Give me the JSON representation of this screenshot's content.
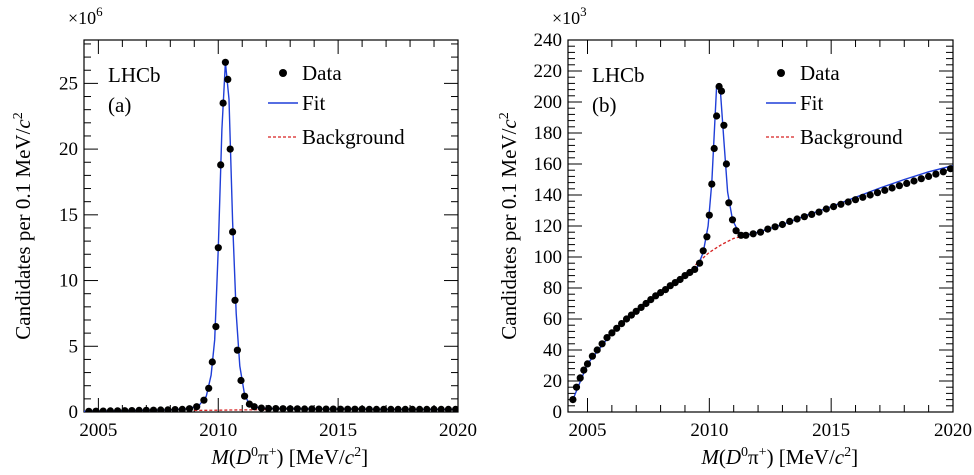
{
  "chart_data": [
    {
      "type": "scatter",
      "panel": "(a)",
      "experiment": "LHCb",
      "xlabel": "M(D0π+) [MeV/c2]",
      "ylabel": "Candidates per 0.1 MeV/c2",
      "y_multiplier": "×10^6",
      "xlim": [
        2004.4,
        2020
      ],
      "ylim": [
        0,
        28.3
      ],
      "x_ticks": [
        2005,
        2010,
        2015,
        2020
      ],
      "y_ticks": [
        0,
        5,
        10,
        15,
        20,
        25
      ],
      "grid": false,
      "legend_position": "top-right",
      "legend": [
        "Data",
        "Fit",
        "Background"
      ],
      "series": [
        {
          "name": "Data",
          "style": "markers",
          "color": "#000000",
          "x": [
            2004.6,
            2004.9,
            2005.2,
            2005.5,
            2005.8,
            2006.1,
            2006.4,
            2006.7,
            2007.0,
            2007.3,
            2007.6,
            2007.9,
            2008.2,
            2008.5,
            2008.8,
            2009.1,
            2009.4,
            2009.6,
            2009.75,
            2009.9,
            2010.0,
            2010.1,
            2010.2,
            2010.3,
            2010.4,
            2010.5,
            2010.6,
            2010.7,
            2010.8,
            2010.95,
            2011.1,
            2011.3,
            2011.5,
            2011.8,
            2012.1,
            2012.4,
            2012.7,
            2013.0,
            2013.3,
            2013.6,
            2013.9,
            2014.2,
            2014.5,
            2014.8,
            2015.1,
            2015.4,
            2015.7,
            2016.0,
            2016.3,
            2016.6,
            2016.9,
            2017.2,
            2017.5,
            2017.8,
            2018.1,
            2018.4,
            2018.7,
            2019.0,
            2019.3,
            2019.6,
            2019.9
          ],
          "y": [
            0.05,
            0.06,
            0.07,
            0.08,
            0.09,
            0.1,
            0.11,
            0.12,
            0.13,
            0.14,
            0.15,
            0.16,
            0.18,
            0.2,
            0.25,
            0.4,
            0.9,
            1.8,
            3.8,
            6.5,
            12.5,
            18.8,
            23.5,
            26.6,
            25.3,
            20.0,
            13.7,
            8.5,
            4.7,
            2.4,
            1.2,
            0.6,
            0.4,
            0.3,
            0.27,
            0.26,
            0.25,
            0.24,
            0.24,
            0.23,
            0.23,
            0.22,
            0.22,
            0.22,
            0.21,
            0.21,
            0.21,
            0.21,
            0.2,
            0.2,
            0.2,
            0.2,
            0.2,
            0.2,
            0.2,
            0.2,
            0.2,
            0.2,
            0.2,
            0.2,
            0.2
          ]
        },
        {
          "name": "Fit",
          "style": "line",
          "color": "#1f3ed8",
          "x": [
            2004.4,
            2005,
            2006,
            2007,
            2008,
            2008.8,
            2009.2,
            2009.5,
            2009.7,
            2009.85,
            2010.0,
            2010.15,
            2010.3,
            2010.45,
            2010.6,
            2010.75,
            2010.9,
            2011.1,
            2011.3,
            2011.6,
            2012.0,
            2013,
            2014,
            2015,
            2016,
            2017,
            2018,
            2019,
            2020
          ],
          "y": [
            0.05,
            0.06,
            0.1,
            0.13,
            0.17,
            0.25,
            0.5,
            1.2,
            2.8,
            5.5,
            12.5,
            21.5,
            26.6,
            23.8,
            14.5,
            7.5,
            3.5,
            1.3,
            0.6,
            0.35,
            0.27,
            0.24,
            0.23,
            0.22,
            0.21,
            0.2,
            0.2,
            0.2,
            0.2
          ]
        },
        {
          "name": "Background",
          "style": "dashed",
          "color": "#d62222",
          "x": [
            2009.0,
            2009.5,
            2010.0,
            2010.5,
            2011.0,
            2011.5,
            2012.0
          ],
          "y": [
            0.12,
            0.13,
            0.14,
            0.15,
            0.16,
            0.17,
            0.18
          ]
        }
      ]
    },
    {
      "type": "scatter",
      "panel": "(b)",
      "experiment": "LHCb",
      "xlabel": "M(D0π+) [MeV/c2]",
      "ylabel": "Candidates per 0.1 MeV/c2",
      "y_multiplier": "×10^3",
      "xlim": [
        2004.2,
        2020
      ],
      "ylim": [
        0,
        240
      ],
      "x_ticks": [
        2005,
        2010,
        2015,
        2020
      ],
      "y_ticks": [
        0,
        20,
        40,
        60,
        80,
        100,
        120,
        140,
        160,
        180,
        200,
        220,
        240
      ],
      "grid": false,
      "legend_position": "top-right",
      "legend": [
        "Data",
        "Fit",
        "Background"
      ],
      "series": [
        {
          "name": "Data",
          "style": "markers",
          "color": "#000000",
          "x": [
            2004.4,
            2004.55,
            2004.7,
            2004.85,
            2005.0,
            2005.2,
            2005.4,
            2005.6,
            2005.8,
            2006.0,
            2006.2,
            2006.4,
            2006.6,
            2006.8,
            2007.0,
            2007.2,
            2007.4,
            2007.6,
            2007.8,
            2008.0,
            2008.2,
            2008.4,
            2008.6,
            2008.8,
            2009.0,
            2009.2,
            2009.4,
            2009.6,
            2009.75,
            2009.9,
            2010.0,
            2010.1,
            2010.2,
            2010.3,
            2010.4,
            2010.5,
            2010.6,
            2010.7,
            2010.8,
            2010.95,
            2011.1,
            2011.3,
            2011.5,
            2011.8,
            2012.1,
            2012.4,
            2012.7,
            2013.0,
            2013.3,
            2013.6,
            2013.9,
            2014.2,
            2014.5,
            2014.8,
            2015.1,
            2015.4,
            2015.7,
            2016.0,
            2016.3,
            2016.6,
            2016.9,
            2017.2,
            2017.5,
            2017.8,
            2018.1,
            2018.4,
            2018.7,
            2019.0,
            2019.3,
            2019.6,
            2019.9
          ],
          "y": [
            8,
            16,
            22,
            27,
            31,
            36,
            40,
            44,
            48,
            51,
            54,
            57,
            60,
            62.5,
            65,
            67.5,
            70,
            72.5,
            75,
            77,
            79,
            81.5,
            83.5,
            85.5,
            88,
            90,
            92,
            96,
            104,
            113,
            127,
            147,
            170,
            191,
            210,
            207,
            185,
            160,
            135,
            124,
            117,
            114,
            114,
            115,
            116,
            118,
            119.5,
            121,
            123,
            124.5,
            126,
            127.5,
            129,
            131,
            132.5,
            134,
            135.5,
            137,
            138.5,
            140,
            141.5,
            143,
            144.5,
            146,
            147.5,
            149,
            150.5,
            152,
            153.5,
            155,
            157
          ]
        },
        {
          "name": "Fit",
          "style": "line",
          "color": "#1f3ed8",
          "x": [
            2004.4,
            2005,
            2006,
            2007,
            2008,
            2009,
            2009.5,
            2009.75,
            2009.95,
            2010.1,
            2010.3,
            2010.45,
            2010.6,
            2010.75,
            2010.95,
            2011.2,
            2011.5,
            2012,
            2013,
            2014,
            2015,
            2016,
            2017,
            2018,
            2019,
            2020
          ],
          "y": [
            8,
            31,
            51,
            65,
            77,
            88,
            93,
            103,
            120,
            148,
            210,
            208,
            175,
            142,
            124,
            116,
            114,
            116,
            121,
            127,
            132.5,
            138.5,
            144.5,
            150,
            155,
            159
          ]
        },
        {
          "name": "Background",
          "style": "dashed",
          "color": "#d62222",
          "x": [
            2009.0,
            2009.5,
            2010.0,
            2010.5,
            2011.0,
            2011.5
          ],
          "y": [
            88,
            96,
            103,
            108,
            112,
            114
          ]
        }
      ]
    }
  ]
}
